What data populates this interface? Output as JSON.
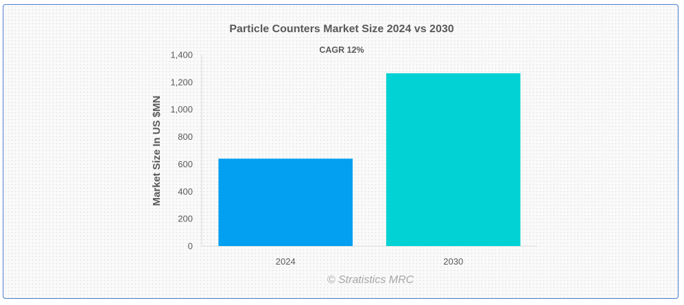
{
  "chart_data": {
    "type": "bar",
    "title": "Particle Counters Market Size 2024 vs 2030",
    "subtitle": "CAGR 12%",
    "xlabel": "",
    "ylabel": "Market Size In US $MN",
    "categories": [
      "2024",
      "2030"
    ],
    "values": [
      640,
      1265
    ],
    "bar_colors": [
      "#039ff0",
      "#03d2d4"
    ],
    "ylim": [
      0,
      1400
    ],
    "yticks": [
      0,
      200,
      400,
      600,
      800,
      1000,
      1200,
      1400
    ],
    "ytick_labels": [
      "0",
      "200",
      "400",
      "600",
      "800",
      "1,000",
      "1,200",
      "1,400"
    ],
    "grid": false,
    "legend": "none"
  },
  "watermark": "© Stratistics MRC"
}
